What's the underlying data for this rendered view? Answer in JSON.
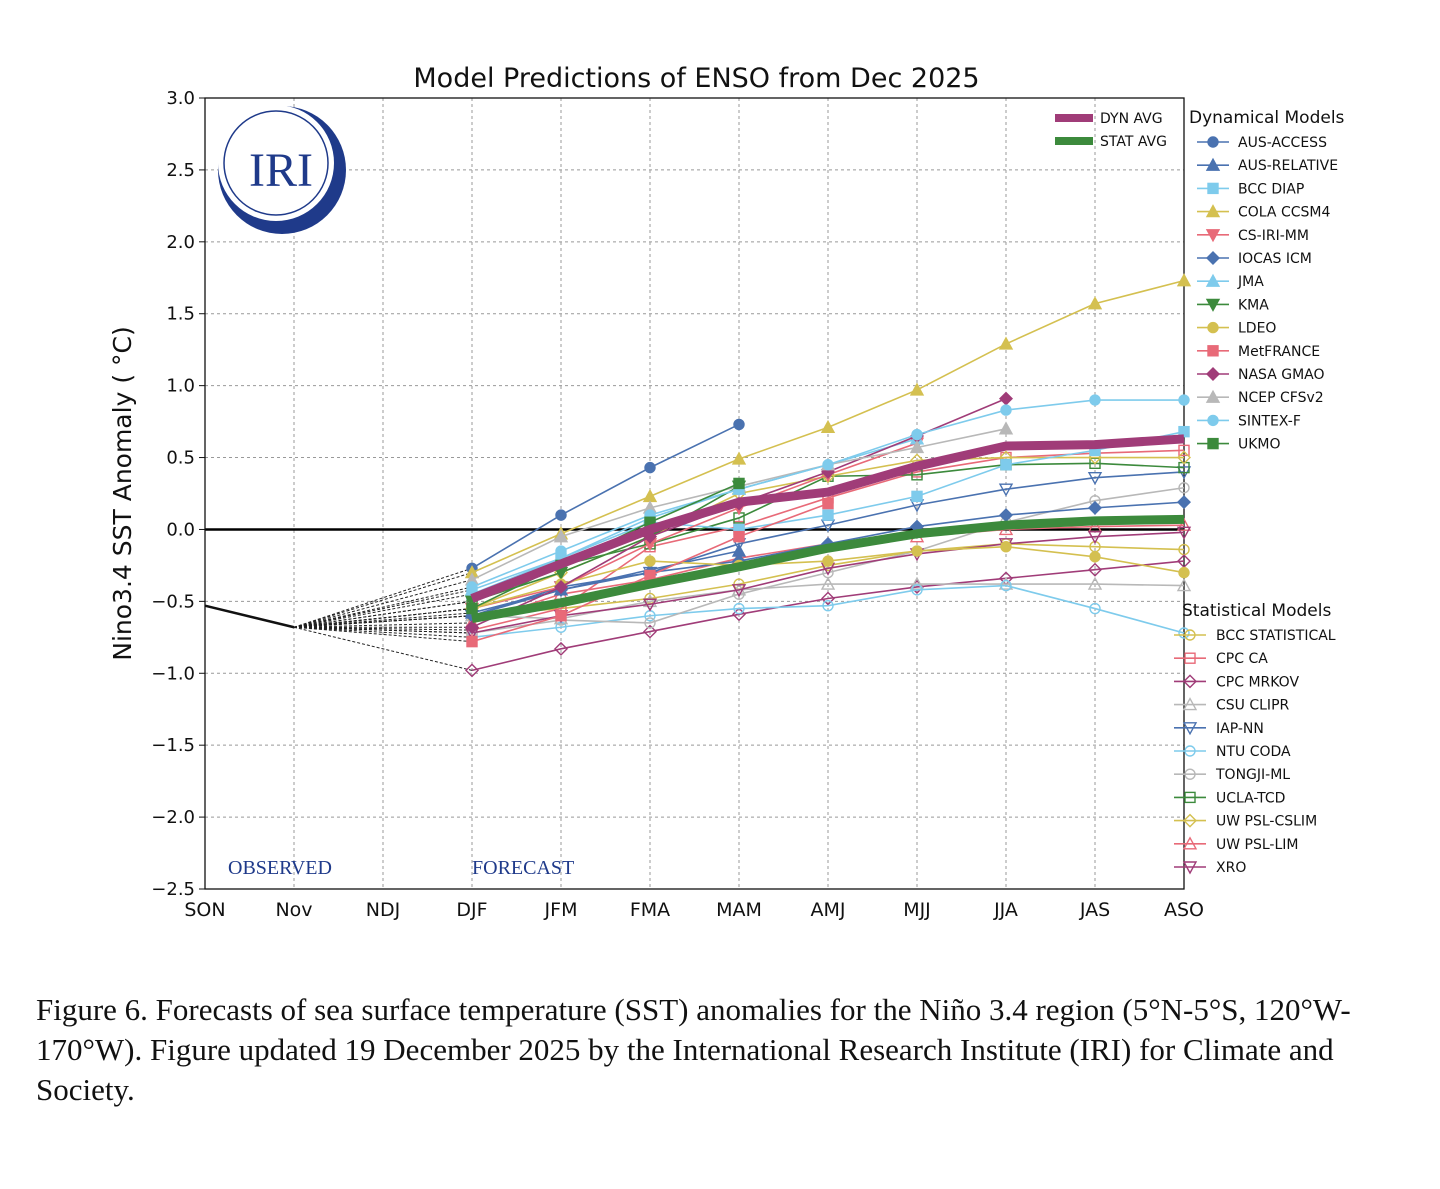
{
  "chart_data": {
    "type": "line",
    "title": "Model Predictions of ENSO from Dec 2025",
    "ylabel": "Nino3.4 SST Anomaly ( °C)",
    "xlabel": "",
    "categories": [
      "SON",
      "Nov",
      "NDJ",
      "DJF",
      "JFM",
      "FMA",
      "MAM",
      "AMJ",
      "MJJ",
      "JJA",
      "JAS",
      "ASO"
    ],
    "ylim": [
      -2.5,
      3.0
    ],
    "yticks": [
      "−2.5",
      "−2.0",
      "−1.5",
      "−1.0",
      "−0.5",
      "0.0",
      "0.5",
      "1.0",
      "1.5",
      "2.0",
      "2.5",
      "3.0"
    ],
    "grid": true,
    "annotations": {
      "observed": "OBSERVED",
      "forecast": "FORECAST"
    },
    "observed": {
      "categories": [
        "SON",
        "Nov"
      ],
      "values": [
        -0.53,
        -0.68
      ]
    },
    "forecast_start": "DJF",
    "averages": [
      {
        "name": "DYN AVG",
        "color": "#a03c78",
        "values": [
          -0.48,
          -0.24,
          0.0,
          0.19,
          0.26,
          0.44,
          0.58,
          0.59,
          0.63
        ]
      },
      {
        "name": "STAT AVG",
        "color": "#3c8a3c",
        "values": [
          -0.62,
          -0.51,
          -0.38,
          -0.26,
          -0.13,
          -0.03,
          0.03,
          0.06,
          0.07
        ]
      }
    ],
    "dynamical_title": "Dynamical Models",
    "dynamical": [
      {
        "name": "AUS-ACCESS",
        "color": "#4a72b0",
        "marker": "circle",
        "values": [
          -0.27,
          0.1,
          0.43,
          0.73
        ]
      },
      {
        "name": "AUS-RELATIVE",
        "color": "#4a72b0",
        "marker": "triangle-up",
        "values": [
          -0.58,
          -0.42,
          -0.28,
          -0.15
        ]
      },
      {
        "name": "BCC DIAP",
        "color": "#7ecbec",
        "marker": "square",
        "values": [
          -0.45,
          -0.2,
          0.05,
          0.0,
          0.1,
          0.23,
          0.45,
          0.55,
          0.68
        ]
      },
      {
        "name": "COLA CCSM4",
        "color": "#d4c050",
        "marker": "triangle-up",
        "values": [
          -0.3,
          -0.03,
          0.23,
          0.49,
          0.71,
          0.97,
          1.29,
          1.57,
          1.73
        ]
      },
      {
        "name": "CS-IRI-MM",
        "color": "#e86a78",
        "marker": "triangle-down",
        "values": [
          -0.55,
          -0.4,
          -0.1,
          0.15,
          0.38,
          0.6
        ]
      },
      {
        "name": "IOCAS ICM",
        "color": "#4a72b0",
        "marker": "diamond",
        "values": [
          -0.6,
          -0.42,
          -0.3,
          -0.22,
          -0.1,
          0.02,
          0.1,
          0.15,
          0.19
        ]
      },
      {
        "name": "JMA",
        "color": "#7ecbec",
        "marker": "triangle-up",
        "values": [
          -0.42,
          -0.2,
          0.08,
          0.28,
          0.45,
          0.63
        ]
      },
      {
        "name": "KMA",
        "color": "#3c8a3c",
        "marker": "triangle-down",
        "values": [
          -0.5,
          -0.3,
          -0.05,
          0.3
        ]
      },
      {
        "name": "LDEO",
        "color": "#d4c050",
        "marker": "circle",
        "values": [
          -0.55,
          -0.38,
          -0.22,
          -0.25,
          -0.22,
          -0.15,
          -0.12,
          -0.19,
          -0.3
        ]
      },
      {
        "name": "MetFRANCE",
        "color": "#e86a78",
        "marker": "square",
        "values": [
          -0.78,
          -0.6,
          -0.32,
          -0.05,
          0.18
        ]
      },
      {
        "name": "NASA GMAO",
        "color": "#a03c78",
        "marker": "diamond",
        "values": [
          -0.68,
          -0.4,
          -0.05,
          0.18,
          0.4,
          0.65,
          0.91
        ]
      },
      {
        "name": "NCEP CFSv2",
        "color": "#b8b8b8",
        "marker": "triangle-up",
        "values": [
          -0.35,
          -0.05,
          0.15,
          0.3,
          0.45,
          0.57,
          0.7
        ]
      },
      {
        "name": "SINTEX-F",
        "color": "#7ecbec",
        "marker": "circle",
        "values": [
          -0.4,
          -0.15,
          0.1,
          0.28,
          0.45,
          0.66,
          0.83,
          0.9,
          0.9
        ]
      },
      {
        "name": "UKMO",
        "color": "#3c8a3c",
        "marker": "square",
        "values": [
          -0.55,
          -0.25,
          0.05,
          0.32
        ]
      }
    ],
    "statistical_title": "Statistical Models",
    "statistical": [
      {
        "name": "BCC STATISTICAL",
        "color": "#d4c050",
        "marker": "circle",
        "values": [
          -0.6,
          -0.55,
          -0.48,
          -0.38,
          -0.25,
          -0.15,
          -0.1,
          -0.12,
          -0.14
        ]
      },
      {
        "name": "CPC CA",
        "color": "#e86a78",
        "marker": "square",
        "values": [
          -0.7,
          -0.55,
          -0.12,
          0.02,
          0.22,
          0.4,
          0.5,
          0.53,
          0.55
        ]
      },
      {
        "name": "CPC MRKOV",
        "color": "#a03c78",
        "marker": "diamond",
        "values": [
          -0.98,
          -0.83,
          -0.71,
          -0.59,
          -0.48,
          -0.4,
          -0.34,
          -0.28,
          -0.22
        ]
      },
      {
        "name": "CSU CLIPR",
        "color": "#b8b8b8",
        "marker": "triangle-up",
        "values": [
          -0.6,
          -0.62,
          -0.5,
          -0.42,
          -0.38,
          -0.38,
          -0.38,
          -0.38,
          -0.39
        ]
      },
      {
        "name": "IAP-NN",
        "color": "#4a72b0",
        "marker": "triangle-down",
        "values": [
          -0.6,
          -0.4,
          -0.3,
          -0.1,
          0.03,
          0.17,
          0.28,
          0.36,
          0.4
        ]
      },
      {
        "name": "NTU CODA",
        "color": "#7ecbec",
        "marker": "circle",
        "values": [
          -0.75,
          -0.68,
          -0.6,
          -0.55,
          -0.53,
          -0.42,
          -0.39,
          -0.55,
          -0.72
        ]
      },
      {
        "name": "TONGJI-ML",
        "color": "#b8b8b8",
        "marker": "circle",
        "values": [
          -0.72,
          -0.63,
          -0.65,
          -0.45,
          -0.3,
          -0.15,
          0.05,
          0.2,
          0.29
        ]
      },
      {
        "name": "UCLA-TCD",
        "color": "#3c8a3c",
        "marker": "square",
        "values": [
          -0.5,
          -0.25,
          -0.1,
          0.08,
          0.37,
          0.38,
          0.45,
          0.46,
          0.43
        ]
      },
      {
        "name": "UW PSL-CSLIM",
        "color": "#d4c050",
        "marker": "diamond",
        "values": [
          -0.55,
          -0.3,
          -0.05,
          0.25,
          0.37,
          0.48,
          0.5,
          0.5,
          0.5
        ]
      },
      {
        "name": "UW PSL-LIM",
        "color": "#e86a78",
        "marker": "triangle-up",
        "values": [
          -0.65,
          -0.45,
          -0.35,
          -0.2,
          -0.1,
          -0.05,
          0.0,
          0.02,
          0.03
        ]
      },
      {
        "name": "XRO",
        "color": "#a03c78",
        "marker": "triangle-down",
        "values": [
          -0.72,
          -0.6,
          -0.52,
          -0.42,
          -0.27,
          -0.17,
          -0.1,
          -0.05,
          -0.02
        ]
      }
    ]
  },
  "logo": {
    "text": "IRI",
    "color": "#1f3a8a"
  },
  "caption": "Figure 6. Forecasts of sea surface temperature (SST) anomalies for the Niño 3.4 region (5°N-5°S, 120°W-170°W). Figure updated 19 December 2025 by the International Research Institute (IRI) for Climate and Society."
}
